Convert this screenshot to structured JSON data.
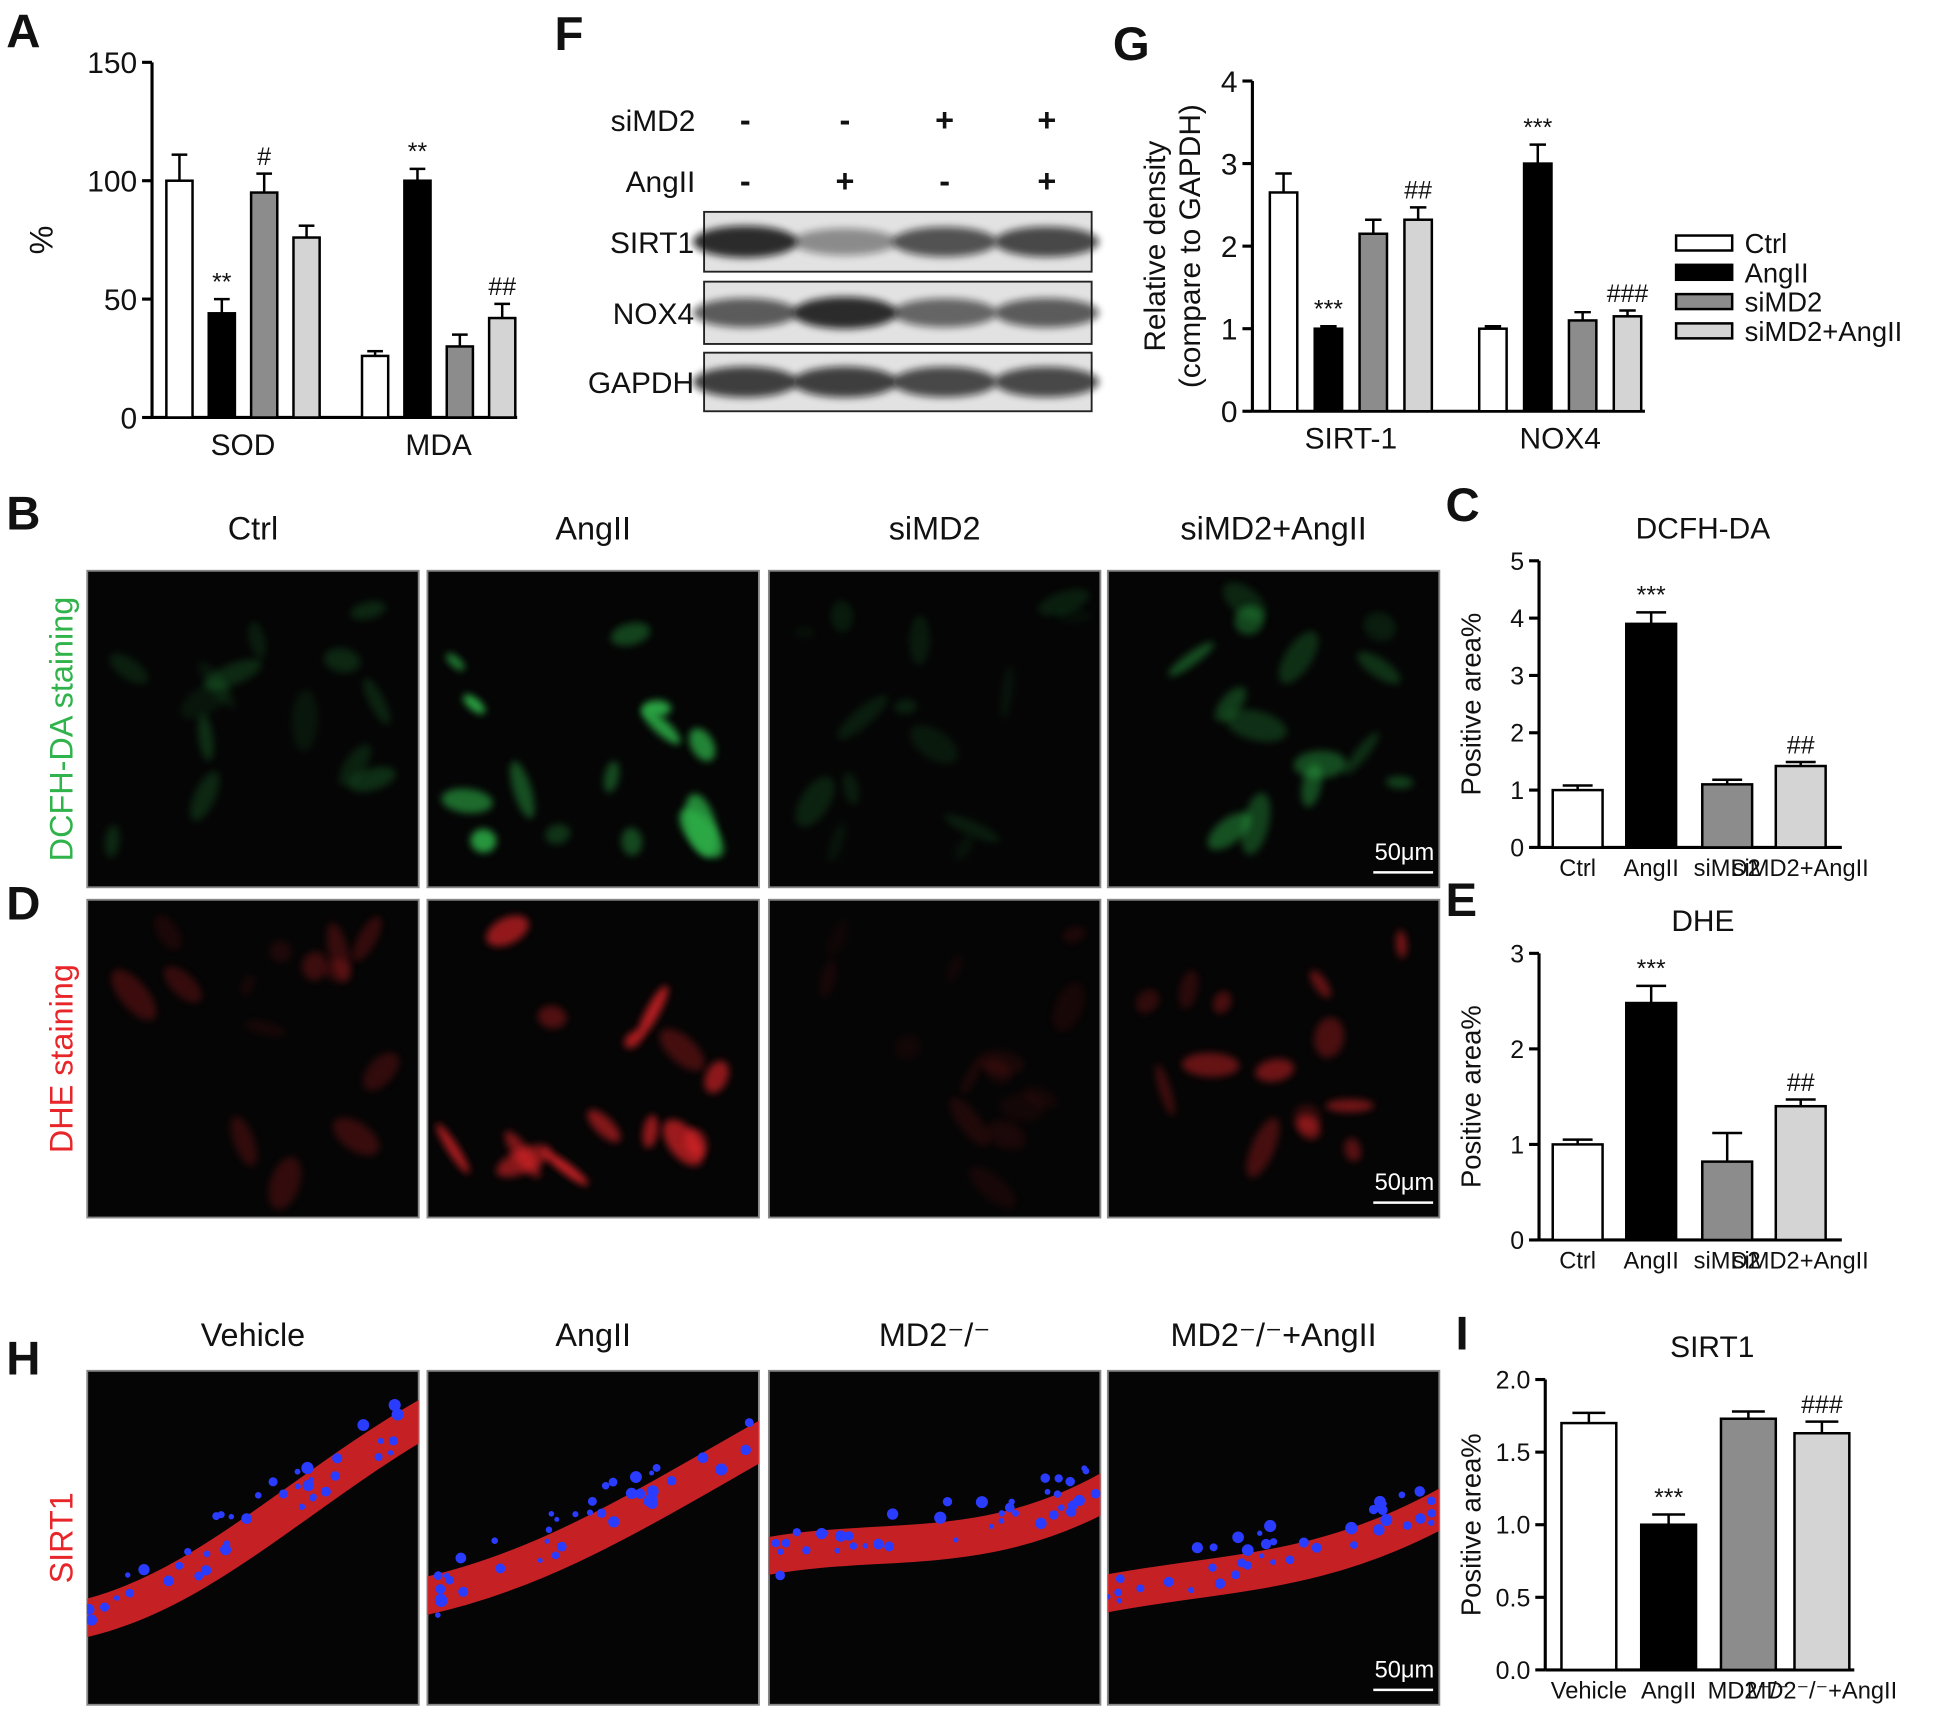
{
  "chart_data": [
    {
      "type": "bar",
      "panel": "A",
      "ylabel": "%",
      "categories": [
        "SOD",
        "MDA"
      ],
      "ylim": [
        0,
        150
      ],
      "yticks": [
        0,
        50,
        100,
        150
      ],
      "series": [
        {
          "color": "#ffffff",
          "values": [
            100,
            26
          ],
          "errors": [
            11,
            2
          ],
          "annotations": [
            null,
            null
          ]
        },
        {
          "color": "#000000",
          "values": [
            44,
            100
          ],
          "errors": [
            6,
            5
          ],
          "annotations": [
            "**",
            "**"
          ]
        },
        {
          "color": "#8c8c8c",
          "values": [
            95,
            30
          ],
          "errors": [
            8,
            5
          ],
          "annotations": [
            "#",
            null
          ]
        },
        {
          "color": "#d4d4d4",
          "values": [
            76,
            42
          ],
          "errors": [
            5,
            6
          ],
          "annotations": [
            null,
            "##"
          ]
        }
      ]
    },
    {
      "type": "bar",
      "panel": "G",
      "ylabel": [
        "Relative density",
        "(compare to GAPDH)"
      ],
      "categories": [
        "SIRT-1",
        "NOX4"
      ],
      "ylim": [
        0,
        4
      ],
      "yticks": [
        0,
        1,
        2,
        3,
        4
      ],
      "series": [
        {
          "name": "Ctrl",
          "color": "#ffffff",
          "values": [
            2.65,
            1.0
          ],
          "errors": [
            0.23,
            0.03
          ],
          "annotations": [
            null,
            null
          ]
        },
        {
          "name": "AngII",
          "color": "#000000",
          "values": [
            1.0,
            3.0
          ],
          "errors": [
            0.03,
            0.23
          ],
          "annotations": [
            "***",
            "***"
          ]
        },
        {
          "name": "siMD2",
          "color": "#8c8c8c",
          "values": [
            2.15,
            1.1
          ],
          "errors": [
            0.17,
            0.1
          ],
          "annotations": [
            null,
            null
          ]
        },
        {
          "name": "siMD2+AngII",
          "color": "#d4d4d4",
          "values": [
            2.32,
            1.15
          ],
          "errors": [
            0.15,
            0.07
          ],
          "annotations": [
            "##",
            "###"
          ]
        }
      ]
    },
    {
      "type": "bar",
      "panel": "C",
      "title": "DCFH-DA",
      "ylabel": "Positive area%",
      "categories": [
        "Ctrl",
        "AngII",
        "siMD2",
        "siMD2+AngII"
      ],
      "values": [
        1.0,
        3.9,
        1.1,
        1.42
      ],
      "errors": [
        0.08,
        0.2,
        0.08,
        0.07
      ],
      "annotations": [
        null,
        "***",
        null,
        "##"
      ],
      "colors": [
        "#ffffff",
        "#000000",
        "#8c8c8c",
        "#d4d4d4"
      ],
      "ylim": [
        0,
        5
      ],
      "yticks": [
        0,
        1,
        2,
        3,
        4,
        5
      ]
    },
    {
      "type": "bar",
      "panel": "E",
      "title": "DHE",
      "ylabel": "Positive area%",
      "categories": [
        "Ctrl",
        "AngII",
        "siMD2",
        "siMD2+AngII"
      ],
      "values": [
        1.0,
        2.48,
        0.82,
        1.4
      ],
      "errors": [
        0.05,
        0.18,
        0.3,
        0.07
      ],
      "annotations": [
        null,
        "***",
        null,
        "##"
      ],
      "colors": [
        "#ffffff",
        "#000000",
        "#8c8c8c",
        "#d4d4d4"
      ],
      "ylim": [
        0,
        3
      ],
      "yticks": [
        0,
        1,
        2,
        3
      ]
    },
    {
      "type": "bar",
      "panel": "I",
      "title": "SIRT1",
      "ylabel": "Positive area%",
      "categories": [
        "Vehicle",
        "AngII",
        "MD2⁻/⁻",
        "MD2⁻/⁻+AngII"
      ],
      "values": [
        1.7,
        1.0,
        1.73,
        1.63
      ],
      "errors": [
        0.07,
        0.07,
        0.05,
        0.08
      ],
      "annotations": [
        null,
        "***",
        null,
        "###"
      ],
      "colors": [
        "#ffffff",
        "#000000",
        "#8c8c8c",
        "#d4d4d4"
      ],
      "ylim": [
        0,
        2
      ],
      "yticks": [
        {
          "value": 0,
          "label": "0.0"
        },
        {
          "value": 0.5,
          "label": "0.5"
        },
        {
          "value": 1,
          "label": "1.0"
        },
        {
          "value": 1.5,
          "label": "1.5"
        },
        {
          "value": 2,
          "label": "2.0"
        }
      ]
    }
  ],
  "blot": {
    "panel": "F",
    "conditions": [
      {
        "name": "siMD2",
        "signs": [
          "-",
          "-",
          "+",
          "+"
        ]
      },
      {
        "name": "AngII",
        "signs": [
          "-",
          "+",
          "-",
          "+"
        ]
      }
    ],
    "bands": [
      "SIRT1",
      "NOX4",
      "GAPDH"
    ]
  },
  "imaging": [
    {
      "panel": "B",
      "stain": "DCFH-DA staining",
      "color": "#2fb34a",
      "columns": [
        "Ctrl",
        "AngII",
        "siMD2",
        "siMD2+AngII"
      ],
      "scale_bar": "50μm"
    },
    {
      "panel": "D",
      "stain": "DHE staining",
      "color": "#e8262a",
      "scale_bar": "50μm"
    },
    {
      "panel": "H",
      "stain": "SIRT1",
      "color": "#e8262a",
      "columns": [
        "Vehicle",
        "AngII",
        "MD2⁻/⁻",
        "MD2⁻/⁻+AngII"
      ],
      "scale_bar": "50μm"
    }
  ]
}
